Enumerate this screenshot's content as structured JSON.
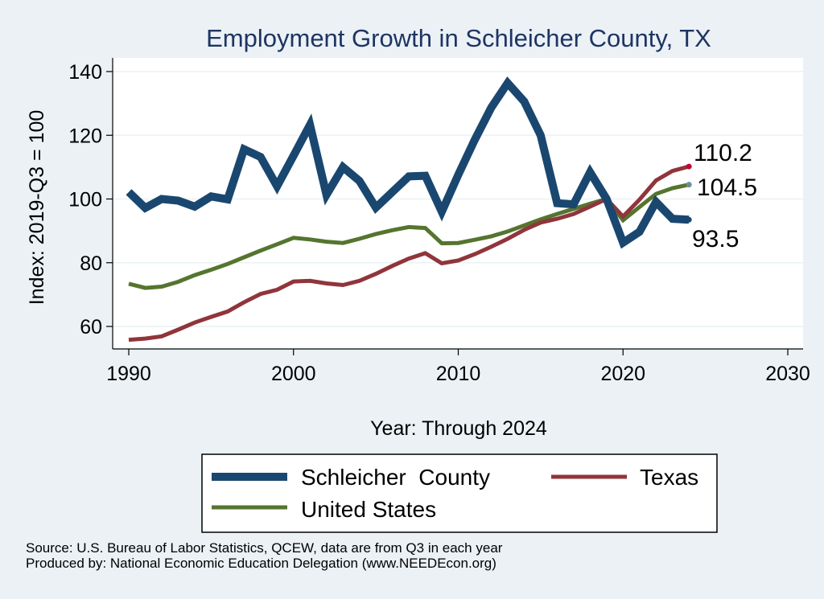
{
  "chart_data": {
    "type": "line",
    "title": "Employment Growth in Schleicher County, TX",
    "xlabel": "Year: Through 2024",
    "ylabel": "Index: 2019-Q3 = 100",
    "xlim": [
      1990,
      2030
    ],
    "ylim": [
      52,
      144
    ],
    "xticks": [
      1990,
      2000,
      2010,
      2020,
      2030
    ],
    "yticks": [
      60,
      80,
      100,
      120,
      140
    ],
    "grid": true,
    "legend_position": "bottom",
    "x": [
      1990,
      1991,
      1992,
      1993,
      1994,
      1995,
      1996,
      1997,
      1998,
      1999,
      2000,
      2001,
      2002,
      2003,
      2004,
      2005,
      2006,
      2007,
      2008,
      2009,
      2010,
      2011,
      2012,
      2013,
      2014,
      2015,
      2016,
      2017,
      2018,
      2019,
      2020,
      2021,
      2022,
      2023,
      2024
    ],
    "series": [
      {
        "name": "Schleicher  County",
        "color": "#1a476f",
        "values": [
          102.2,
          97.2,
          100.0,
          99.5,
          97.6,
          100.8,
          99.9,
          115.6,
          113.2,
          104.0,
          113.6,
          123.3,
          101.3,
          110.0,
          105.7,
          97.3,
          102.2,
          107.1,
          107.3,
          96.0,
          107.6,
          118.6,
          128.7,
          136.4,
          130.6,
          120.0,
          98.7,
          98.3,
          108.4,
          100.0,
          86.3,
          89.7,
          99.1,
          93.8,
          93.5
        ],
        "end_label": "93.5",
        "end_marker_color": "#1a476f"
      },
      {
        "name": "Texas",
        "color": "#90353b",
        "values": [
          55.8,
          56.2,
          56.9,
          59.0,
          61.2,
          63.0,
          64.7,
          67.6,
          70.2,
          71.5,
          74.1,
          74.3,
          73.5,
          73.0,
          74.3,
          76.5,
          79.0,
          81.3,
          83.0,
          79.8,
          80.7,
          82.7,
          85.0,
          87.5,
          90.3,
          92.6,
          93.8,
          95.3,
          97.6,
          100.0,
          94.5,
          99.8,
          105.8,
          108.8,
          110.2
        ],
        "end_label": "110.2",
        "end_marker_color": "#c10534"
      },
      {
        "name": "United States",
        "color": "#55752f",
        "values": [
          73.4,
          72.1,
          72.5,
          74.0,
          76.1,
          77.8,
          79.6,
          81.7,
          83.8,
          85.8,
          87.8,
          87.3,
          86.6,
          86.2,
          87.5,
          89.0,
          90.2,
          91.2,
          90.9,
          86.1,
          86.2,
          87.2,
          88.3,
          89.8,
          91.7,
          93.6,
          95.3,
          96.9,
          98.5,
          100.0,
          93.3,
          97.5,
          101.6,
          103.4,
          104.5
        ],
        "end_label": "104.5",
        "end_marker_color": "#6b8e96"
      }
    ]
  },
  "source": {
    "line1": "Source: U.S. Bureau of Labor Statistics, QCEW, data are from Q3 in each year",
    "line2": "Produced by: National Economic Education Delegation (www.NEEDEcon.org)"
  }
}
